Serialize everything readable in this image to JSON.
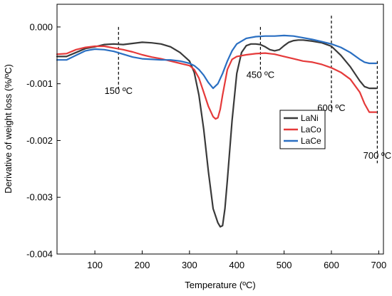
{
  "chart_data": {
    "type": "line",
    "title": "",
    "xlabel": "Temperature (ºC)",
    "ylabel": "Derivative of weight loss (%/ºC)",
    "xlim": [
      20,
      710
    ],
    "ylim": [
      -0.004,
      0.0004
    ],
    "x_ticks": [
      100,
      200,
      300,
      400,
      500,
      600,
      700
    ],
    "x_tick_labels": [
      "100",
      "200",
      "300",
      "400",
      "500",
      "600",
      "700"
    ],
    "y_ticks": [
      0.0,
      -0.001,
      -0.002,
      -0.003,
      -0.004
    ],
    "y_tick_labels": [
      "0.000",
      "-0.001",
      "-0.002",
      "-0.003",
      "-0.004"
    ],
    "grid": false,
    "legend": {
      "position": "center-right",
      "entries": [
        "LaNi",
        "LaCo",
        "LaCe"
      ]
    },
    "annotations": [
      {
        "x": 150,
        "label": "150 ºC",
        "line_top": 0.0,
        "line_bottom": -0.0011,
        "label_y": -0.00118
      },
      {
        "x": 450,
        "label": "450 ºC",
        "line_top": 0.0,
        "line_bottom": -0.0008,
        "label_y": -0.0009
      },
      {
        "x": 600,
        "label": "600 ºC",
        "line_top": 0.0002,
        "line_bottom": -0.0015,
        "label_y": -0.00148
      },
      {
        "x": 697,
        "label": "700 ºC",
        "line_top": -0.0006,
        "line_bottom": -0.0024,
        "label_y": -0.00232
      }
    ],
    "series": [
      {
        "name": "LaNi",
        "color": "#3a3a3a",
        "x": [
          20,
          40,
          60,
          80,
          100,
          120,
          140,
          160,
          180,
          200,
          220,
          240,
          260,
          280,
          300,
          310,
          320,
          330,
          340,
          350,
          360,
          365,
          370,
          375,
          380,
          390,
          400,
          410,
          420,
          430,
          440,
          450,
          460,
          470,
          480,
          490,
          500,
          510,
          520,
          530,
          540,
          560,
          580,
          600,
          620,
          640,
          660,
          670,
          680,
          695
        ],
        "y": [
          -0.00052,
          -0.00052,
          -0.00045,
          -0.00038,
          -0.00035,
          -0.00031,
          -0.0003,
          -0.00031,
          -0.00029,
          -0.00027,
          -0.00028,
          -0.0003,
          -0.00035,
          -0.00045,
          -0.0006,
          -0.0008,
          -0.0012,
          -0.0018,
          -0.00255,
          -0.0032,
          -0.00345,
          -0.00352,
          -0.0035,
          -0.0032,
          -0.0027,
          -0.00165,
          -0.00082,
          -0.00045,
          -0.00033,
          -0.0003,
          -0.0003,
          -0.00031,
          -0.00035,
          -0.0004,
          -0.00042,
          -0.0004,
          -0.00033,
          -0.00027,
          -0.00024,
          -0.00023,
          -0.00023,
          -0.00025,
          -0.00028,
          -0.00034,
          -0.0005,
          -0.0007,
          -0.00095,
          -0.00105,
          -0.00108,
          -0.00108
        ]
      },
      {
        "name": "LaCo",
        "color": "#e53a3a",
        "x": [
          20,
          40,
          60,
          80,
          100,
          120,
          140,
          160,
          180,
          200,
          220,
          240,
          260,
          280,
          300,
          310,
          320,
          330,
          340,
          350,
          355,
          360,
          365,
          370,
          380,
          390,
          400,
          420,
          440,
          460,
          480,
          500,
          520,
          540,
          560,
          580,
          600,
          620,
          640,
          660,
          670,
          680,
          695
        ],
        "y": [
          -0.00048,
          -0.00047,
          -0.0004,
          -0.00036,
          -0.00034,
          -0.00034,
          -0.00037,
          -0.0004,
          -0.00044,
          -0.00049,
          -0.00053,
          -0.00056,
          -0.0006,
          -0.00064,
          -0.00068,
          -0.00075,
          -0.0009,
          -0.00115,
          -0.0014,
          -0.00158,
          -0.00162,
          -0.0016,
          -0.00145,
          -0.0012,
          -0.00075,
          -0.00057,
          -0.00052,
          -0.00049,
          -0.00047,
          -0.00046,
          -0.00048,
          -0.00052,
          -0.00056,
          -0.0006,
          -0.00062,
          -0.00066,
          -0.00072,
          -0.0008,
          -0.00092,
          -0.00115,
          -0.00135,
          -0.0015,
          -0.0015
        ]
      },
      {
        "name": "LaCe",
        "color": "#2a6fc2",
        "x": [
          20,
          40,
          60,
          80,
          100,
          120,
          140,
          160,
          180,
          200,
          220,
          240,
          260,
          280,
          300,
          310,
          320,
          330,
          340,
          350,
          360,
          370,
          380,
          390,
          400,
          420,
          440,
          460,
          480,
          500,
          520,
          540,
          560,
          580,
          600,
          620,
          640,
          660,
          670,
          680,
          695
        ],
        "y": [
          -0.00058,
          -0.00058,
          -0.0005,
          -0.00042,
          -0.00039,
          -0.0004,
          -0.00043,
          -0.00048,
          -0.00053,
          -0.00056,
          -0.00057,
          -0.00058,
          -0.00058,
          -0.0006,
          -0.00064,
          -0.00068,
          -0.00075,
          -0.00085,
          -0.00098,
          -0.00108,
          -0.001,
          -0.00082,
          -0.0006,
          -0.00042,
          -0.0003,
          -0.0002,
          -0.00017,
          -0.00016,
          -0.00016,
          -0.00015,
          -0.00016,
          -0.00019,
          -0.00022,
          -0.00026,
          -0.0003,
          -0.00036,
          -0.00045,
          -0.00057,
          -0.00062,
          -0.00064,
          -0.00064
        ]
      }
    ]
  }
}
